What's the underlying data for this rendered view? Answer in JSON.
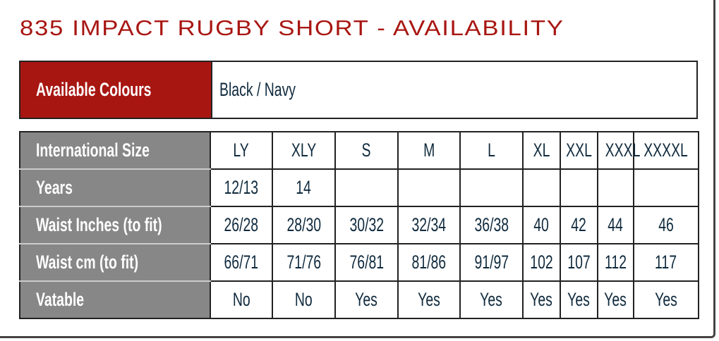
{
  "title": "835 IMPACT RUGBY SHORT - AVAILABILITY",
  "colours": {
    "label": "Available Colours",
    "value": "Black / Navy"
  },
  "colors": {
    "accent": "#a81612",
    "label_bg": "#878787",
    "text": "#0f2a3d"
  },
  "size_table": {
    "rows": [
      {
        "label": "International Size",
        "values": [
          "LY",
          "XLY",
          "S",
          "M",
          "L",
          "XL",
          "XXL",
          "XXXL",
          "XXXXL"
        ]
      },
      {
        "label": "Years",
        "values": [
          "12/13",
          "14",
          "",
          "",
          "",
          "",
          "",
          "",
          ""
        ]
      },
      {
        "label": "Waist Inches (to fit)",
        "values": [
          "26/28",
          "28/30",
          "30/32",
          "32/34",
          "36/38",
          "40",
          "42",
          "44",
          "46"
        ]
      },
      {
        "label": "Waist cm (to fit)",
        "values": [
          "66/71",
          "71/76",
          "76/81",
          "81/86",
          "91/97",
          "102",
          "107",
          "112",
          "117"
        ]
      },
      {
        "label": "Vatable",
        "values": [
          "No",
          "No",
          "Yes",
          "Yes",
          "Yes",
          "Yes",
          "Yes",
          "Yes",
          "Yes"
        ]
      }
    ]
  }
}
